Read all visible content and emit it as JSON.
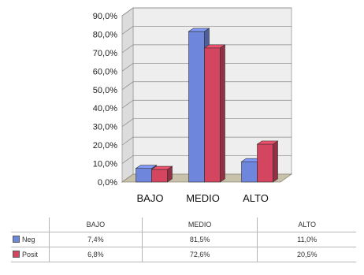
{
  "chart_data": {
    "type": "bar",
    "title": "",
    "xlabel": "",
    "ylabel": "",
    "categories": [
      "BAJO",
      "MEDIO",
      "ALTO"
    ],
    "series": [
      {
        "name": "Neg",
        "values": [
          7.4,
          81.5,
          11.0
        ],
        "color": "#6f86dd"
      },
      {
        "name": "Posit",
        "values": [
          6.8,
          72.6,
          20.5
        ],
        "color": "#d4455f"
      }
    ],
    "ylim": [
      0,
      90
    ],
    "yticks": [
      "0,0%",
      "10,0%",
      "20,0%",
      "30,0%",
      "40,0%",
      "50,0%",
      "60,0%",
      "70,0%",
      "80,0%",
      "90,0%"
    ],
    "grid": true,
    "three_d": true
  },
  "table": {
    "headers": [
      "",
      "BAJO",
      "MEDIO",
      "ALTO"
    ],
    "rows": [
      {
        "label": "Neg",
        "cells": [
          "7,4%",
          "81,5%",
          "11,0%"
        ]
      },
      {
        "label": "Posit",
        "cells": [
          "6,8%",
          "72,6%",
          "20,5%"
        ]
      }
    ]
  }
}
